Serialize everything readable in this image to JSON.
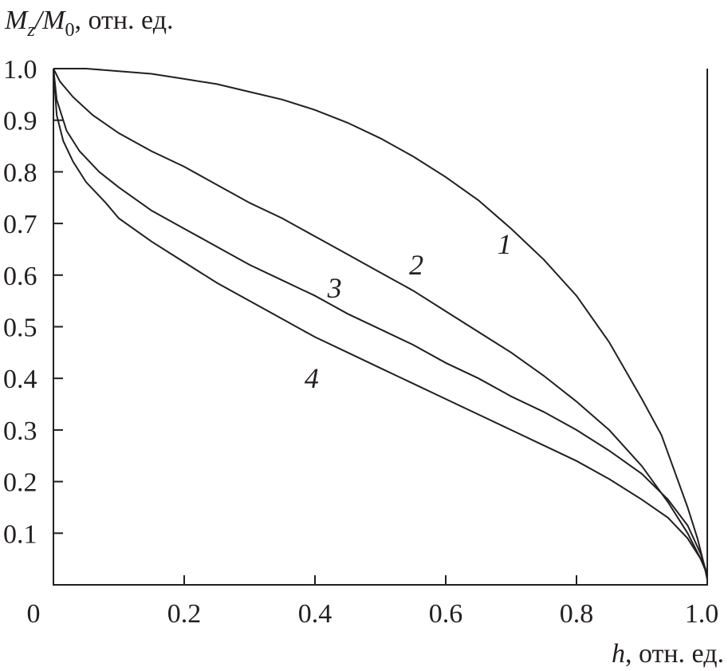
{
  "chart_data": {
    "type": "line",
    "ylabel": {
      "main": "M",
      "sub1": "z",
      "slash": "/",
      "main2": "M",
      "sub2": "0",
      "unit": ", отн. ед."
    },
    "xlabel": {
      "var": "h",
      "unit": ", отн. ед."
    },
    "xlim": [
      0,
      1.0
    ],
    "ylim": [
      0,
      1.0
    ],
    "x_ticks": [
      {
        "value": 0,
        "label": "0"
      },
      {
        "value": 0.2,
        "label": "0.2"
      },
      {
        "value": 0.4,
        "label": "0.4"
      },
      {
        "value": 0.6,
        "label": "0.6"
      },
      {
        "value": 0.8,
        "label": "0.8"
      },
      {
        "value": 1.0,
        "label": "1.0"
      }
    ],
    "y_ticks": [
      {
        "value": 0.1,
        "label": "0.1"
      },
      {
        "value": 0.2,
        "label": "0.2"
      },
      {
        "value": 0.3,
        "label": "0.3"
      },
      {
        "value": 0.4,
        "label": "0.4"
      },
      {
        "value": 0.5,
        "label": "0.5"
      },
      {
        "value": 0.6,
        "label": "0.6"
      },
      {
        "value": 0.7,
        "label": "0.7"
      },
      {
        "value": 0.8,
        "label": "0.8"
      },
      {
        "value": 0.9,
        "label": "0.9"
      },
      {
        "value": 1.0,
        "label": "1.0"
      }
    ],
    "grid": false,
    "line_color": "#231f20",
    "series": [
      {
        "name": "1",
        "label_at": [
          0.69,
          0.66
        ],
        "x": [
          0,
          0.05,
          0.1,
          0.15,
          0.2,
          0.25,
          0.3,
          0.35,
          0.4,
          0.45,
          0.5,
          0.55,
          0.6,
          0.65,
          0.7,
          0.75,
          0.8,
          0.85,
          0.9,
          0.93,
          0.95,
          0.97,
          0.985,
          0.995,
          1.0
        ],
        "y": [
          1.0,
          1.0,
          0.995,
          0.99,
          0.98,
          0.97,
          0.955,
          0.94,
          0.92,
          0.895,
          0.865,
          0.83,
          0.79,
          0.745,
          0.69,
          0.63,
          0.56,
          0.47,
          0.36,
          0.29,
          0.22,
          0.15,
          0.09,
          0.04,
          0.01
        ]
      },
      {
        "name": "2",
        "label_at": [
          0.555,
          0.62
        ],
        "x": [
          0,
          0.01,
          0.03,
          0.06,
          0.1,
          0.15,
          0.2,
          0.25,
          0.3,
          0.35,
          0.4,
          0.45,
          0.5,
          0.55,
          0.6,
          0.65,
          0.7,
          0.75,
          0.8,
          0.85,
          0.9,
          0.94,
          0.97,
          0.99,
          1.0
        ],
        "y": [
          1.0,
          0.975,
          0.945,
          0.91,
          0.875,
          0.84,
          0.81,
          0.775,
          0.74,
          0.71,
          0.675,
          0.64,
          0.605,
          0.57,
          0.53,
          0.49,
          0.45,
          0.405,
          0.355,
          0.3,
          0.23,
          0.16,
          0.1,
          0.05,
          0.02
        ]
      },
      {
        "name": "3",
        "label_at": [
          0.43,
          0.575
        ],
        "x": [
          0,
          0.005,
          0.02,
          0.04,
          0.07,
          0.1,
          0.15,
          0.2,
          0.25,
          0.3,
          0.35,
          0.4,
          0.45,
          0.5,
          0.55,
          0.6,
          0.65,
          0.7,
          0.75,
          0.8,
          0.85,
          0.9,
          0.94,
          0.97,
          0.99,
          1.0
        ],
        "y": [
          1.0,
          0.94,
          0.88,
          0.84,
          0.8,
          0.77,
          0.725,
          0.69,
          0.655,
          0.62,
          0.59,
          0.56,
          0.525,
          0.495,
          0.465,
          0.43,
          0.4,
          0.365,
          0.335,
          0.3,
          0.26,
          0.215,
          0.165,
          0.115,
          0.06,
          0.02
        ]
      },
      {
        "name": "4",
        "label_at": [
          0.395,
          0.4
        ],
        "x": [
          0,
          0.005,
          0.015,
          0.03,
          0.05,
          0.08,
          0.1,
          0.15,
          0.2,
          0.25,
          0.3,
          0.35,
          0.4,
          0.45,
          0.5,
          0.55,
          0.6,
          0.65,
          0.7,
          0.75,
          0.8,
          0.85,
          0.9,
          0.94,
          0.97,
          0.99,
          1.0
        ],
        "y": [
          1.0,
          0.91,
          0.86,
          0.82,
          0.78,
          0.74,
          0.71,
          0.665,
          0.625,
          0.585,
          0.55,
          0.515,
          0.48,
          0.45,
          0.42,
          0.39,
          0.36,
          0.33,
          0.3,
          0.27,
          0.24,
          0.205,
          0.165,
          0.13,
          0.09,
          0.05,
          0.02
        ]
      }
    ]
  }
}
